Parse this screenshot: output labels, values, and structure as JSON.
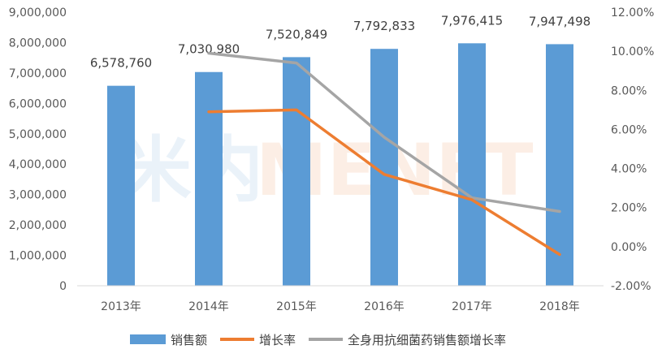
{
  "watermark": {
    "cn": "米内",
    "en": "MENET"
  },
  "chart_data": {
    "type": "bar",
    "categories": [
      "2013年",
      "2014年",
      "2015年",
      "2016年",
      "2017年",
      "2018年"
    ],
    "series": [
      {
        "name": "销售额",
        "type": "bar",
        "axis": "left",
        "color": "#5b9bd5",
        "values": [
          6578760,
          7030980,
          7520849,
          7792833,
          7976415,
          7947498
        ],
        "labels": [
          "6,578,760",
          "7,030,980",
          "7,520,849",
          "7,792,833",
          "7,976,415",
          "7,947,498"
        ]
      },
      {
        "name": "增长率",
        "type": "line",
        "axis": "right",
        "color": "#ed7d31",
        "values": [
          null,
          6.9,
          7.0,
          3.7,
          2.4,
          -0.4
        ]
      },
      {
        "name": "全身用抗细菌药销售额增长率",
        "type": "line",
        "axis": "right",
        "color": "#a5a5a5",
        "values": [
          null,
          9.9,
          9.4,
          5.6,
          2.5,
          1.8
        ]
      }
    ],
    "left_axis": {
      "min": 0,
      "max": 9000000,
      "step": 1000000,
      "tick_labels": [
        "0",
        "1,000,000",
        "2,000,000",
        "3,000,000",
        "4,000,000",
        "5,000,000",
        "6,000,000",
        "7,000,000",
        "8,000,000",
        "9,000,000"
      ]
    },
    "right_axis": {
      "min": -2,
      "max": 12,
      "step": 2,
      "tick_labels": [
        "-2.00%",
        "0.00%",
        "2.00%",
        "4.00%",
        "6.00%",
        "8.00%",
        "10.00%",
        "12.00%"
      ]
    },
    "grid": false,
    "legend_position": "bottom",
    "title": "",
    "xlabel": "",
    "ylabel": ""
  }
}
